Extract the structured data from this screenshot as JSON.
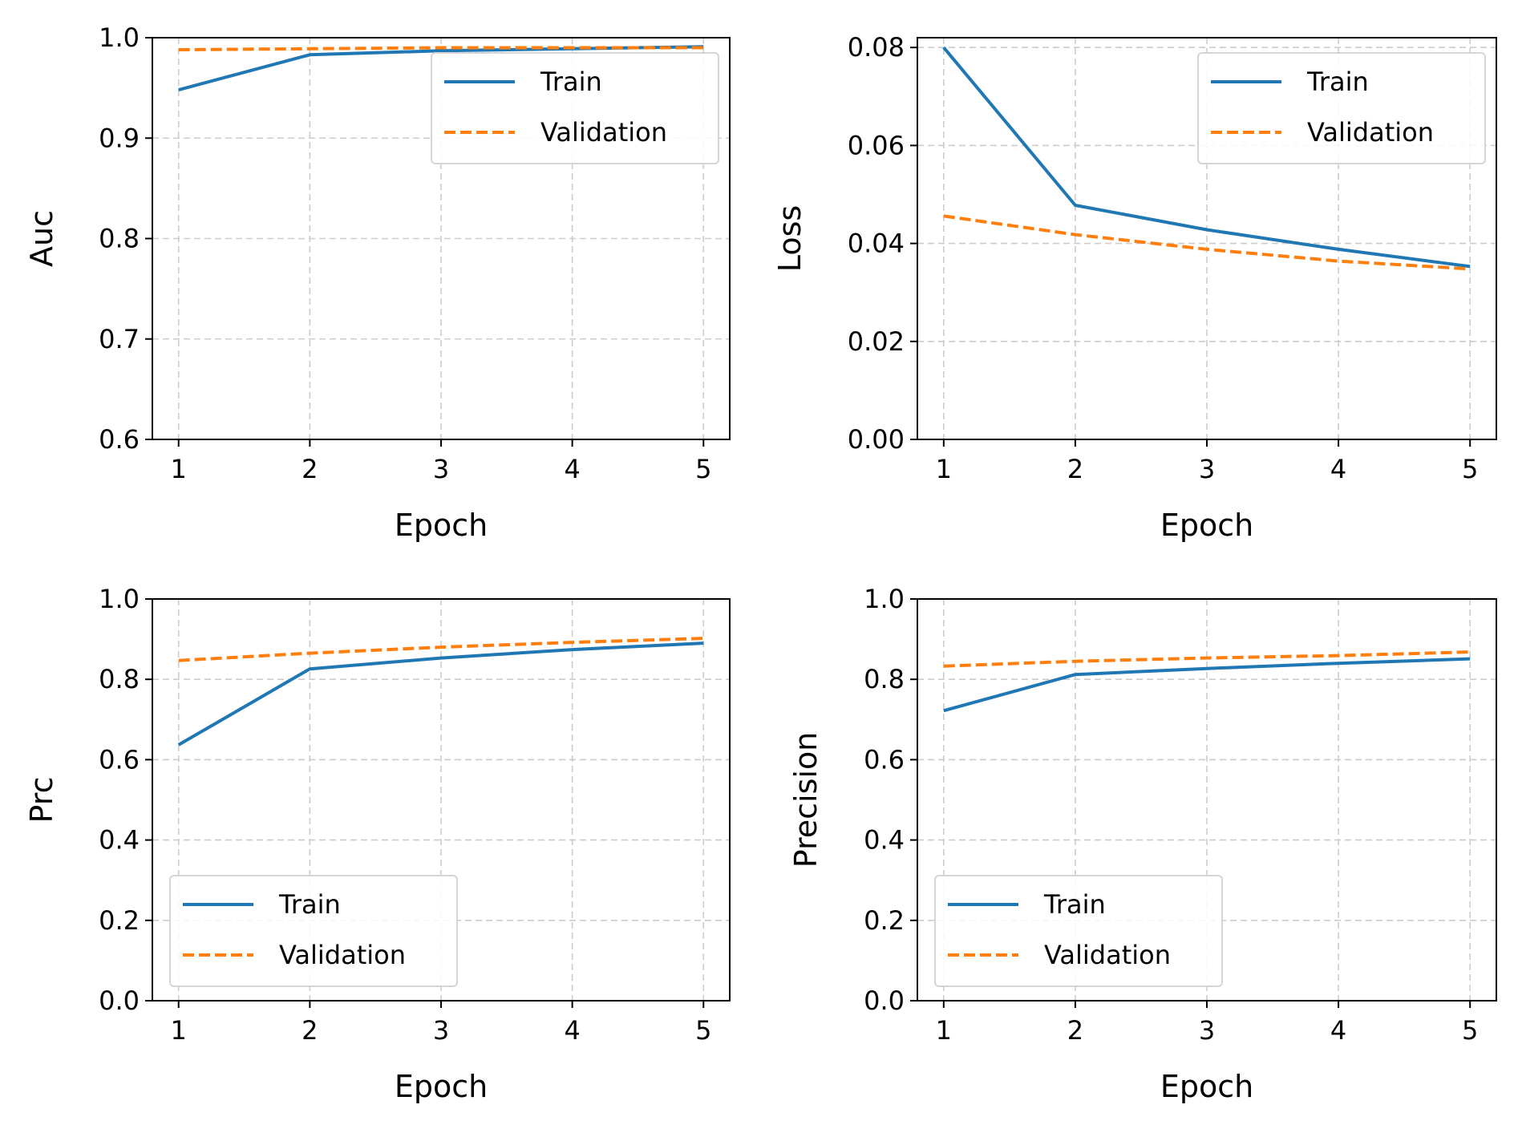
{
  "colors": {
    "train": "#1f77b4",
    "validation": "#ff7f0e",
    "grid": "#cccccc"
  },
  "chart_data": [
    {
      "type": "line",
      "xlabel": "Epoch",
      "ylabel": "Auc",
      "x": [
        1,
        2,
        3,
        4,
        5
      ],
      "xticks": [
        "1",
        "2",
        "3",
        "4",
        "5"
      ],
      "yticks": [
        "0.6",
        "0.7",
        "0.8",
        "0.9",
        "1.0"
      ],
      "ylim": [
        0.6,
        1.0
      ],
      "grid": true,
      "legend": "top-right",
      "series": [
        {
          "name": "Train",
          "style": "solid",
          "values": [
            0.948,
            0.983,
            0.987,
            0.989,
            0.991
          ]
        },
        {
          "name": "Validation",
          "style": "dashed",
          "values": [
            0.988,
            0.989,
            0.99,
            0.99,
            0.99
          ]
        }
      ]
    },
    {
      "type": "line",
      "xlabel": "Epoch",
      "ylabel": "Loss",
      "x": [
        1,
        2,
        3,
        4,
        5
      ],
      "xticks": [
        "1",
        "2",
        "3",
        "4",
        "5"
      ],
      "yticks": [
        "0.00",
        "0.02",
        "0.04",
        "0.06",
        "0.08"
      ],
      "ylim": [
        0.0,
        0.082
      ],
      "grid": true,
      "legend": "top-right",
      "series": [
        {
          "name": "Train",
          "style": "solid",
          "values": [
            0.08,
            0.0478,
            0.0428,
            0.0388,
            0.0353
          ]
        },
        {
          "name": "Validation",
          "style": "dashed",
          "values": [
            0.0456,
            0.0418,
            0.0388,
            0.0364,
            0.0348
          ]
        }
      ]
    },
    {
      "type": "line",
      "xlabel": "Epoch",
      "ylabel": "Prc",
      "x": [
        1,
        2,
        3,
        4,
        5
      ],
      "xticks": [
        "1",
        "2",
        "3",
        "4",
        "5"
      ],
      "yticks": [
        "0.0",
        "0.2",
        "0.4",
        "0.6",
        "0.8",
        "1.0"
      ],
      "ylim": [
        0.0,
        1.0
      ],
      "grid": true,
      "legend": "lower-left",
      "series": [
        {
          "name": "Train",
          "style": "solid",
          "values": [
            0.637,
            0.826,
            0.853,
            0.874,
            0.89
          ]
        },
        {
          "name": "Validation",
          "style": "dashed",
          "values": [
            0.847,
            0.865,
            0.88,
            0.892,
            0.902
          ]
        }
      ]
    },
    {
      "type": "line",
      "xlabel": "Epoch",
      "ylabel": "Precision",
      "x": [
        1,
        2,
        3,
        4,
        5
      ],
      "xticks": [
        "1",
        "2",
        "3",
        "4",
        "5"
      ],
      "yticks": [
        "0.0",
        "0.2",
        "0.4",
        "0.6",
        "0.8",
        "1.0"
      ],
      "ylim": [
        0.0,
        1.0
      ],
      "grid": true,
      "legend": "lower-left",
      "series": [
        {
          "name": "Train",
          "style": "solid",
          "values": [
            0.722,
            0.812,
            0.827,
            0.84,
            0.851
          ]
        },
        {
          "name": "Validation",
          "style": "dashed",
          "values": [
            0.833,
            0.845,
            0.853,
            0.859,
            0.868
          ]
        }
      ]
    }
  ]
}
